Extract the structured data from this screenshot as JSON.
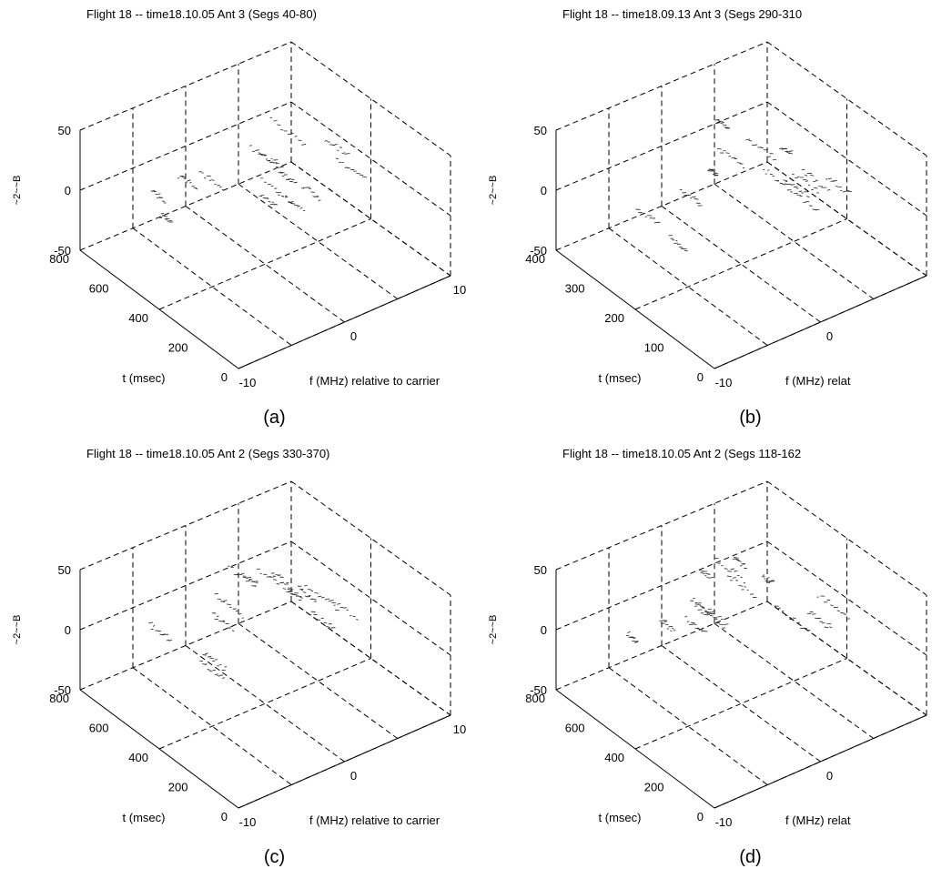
{
  "chart_data": [
    {
      "type": "waterfall-3d",
      "panel_label": "(a)",
      "title": "Flight 18 -- time18.10.05 Ant 3 (Segs 40-80)",
      "xlabel": "f (MHz) relative to carrier",
      "ylabel": "t (msec)",
      "zlabel": "~2~~B",
      "x_ticks": [
        "-10",
        "0",
        "10"
      ],
      "y_ticks": [
        "0",
        "200",
        "400",
        "600",
        "800"
      ],
      "z_ticks": [
        "50",
        "0",
        "-50"
      ],
      "xlim": [
        -10,
        10
      ],
      "ylim": [
        0,
        800
      ],
      "zlim": [
        -50,
        50
      ],
      "grid": true
    },
    {
      "type": "waterfall-3d",
      "panel_label": "(b)",
      "title": "Flight 18 -- time18.09.13 Ant 3 (Segs 290-310",
      "xlabel": "f (MHz) relat",
      "ylabel": "t (msec)",
      "zlabel": "~2~~B",
      "x_ticks": [
        "-10",
        "0"
      ],
      "y_ticks": [
        "0",
        "100",
        "200",
        "300",
        "400"
      ],
      "z_ticks": [
        "50",
        "0",
        "-50"
      ],
      "xlim": [
        -10,
        10
      ],
      "ylim": [
        0,
        400
      ],
      "zlim": [
        -50,
        50
      ],
      "grid": true
    },
    {
      "type": "waterfall-3d",
      "panel_label": "(c)",
      "title": "Flight 18 -- time18.10.05 Ant 2 (Segs 330-370)",
      "xlabel": "f (MHz) relative to carrier",
      "ylabel": "t (msec)",
      "zlabel": "~2~~B",
      "x_ticks": [
        "-10",
        "0",
        "10"
      ],
      "y_ticks": [
        "0",
        "200",
        "400",
        "600",
        "800"
      ],
      "z_ticks": [
        "50",
        "0",
        "-50"
      ],
      "xlim": [
        -10,
        10
      ],
      "ylim": [
        0,
        800
      ],
      "zlim": [
        -50,
        50
      ],
      "grid": true
    },
    {
      "type": "waterfall-3d",
      "panel_label": "(d)",
      "title": "Flight 18 -- time18.10.05 Ant 2 (Segs 118-162",
      "xlabel": "f (MHz) relat",
      "ylabel": "t (msec)",
      "zlabel": "~2~~B",
      "x_ticks": [
        "-10",
        "0"
      ],
      "y_ticks": [
        "0",
        "200",
        "400",
        "600",
        "800"
      ],
      "z_ticks": [
        "50",
        "0",
        "-50"
      ],
      "xlim": [
        -10,
        10
      ],
      "ylim": [
        0,
        800
      ],
      "zlim": [
        -50,
        50
      ],
      "grid": true
    }
  ]
}
